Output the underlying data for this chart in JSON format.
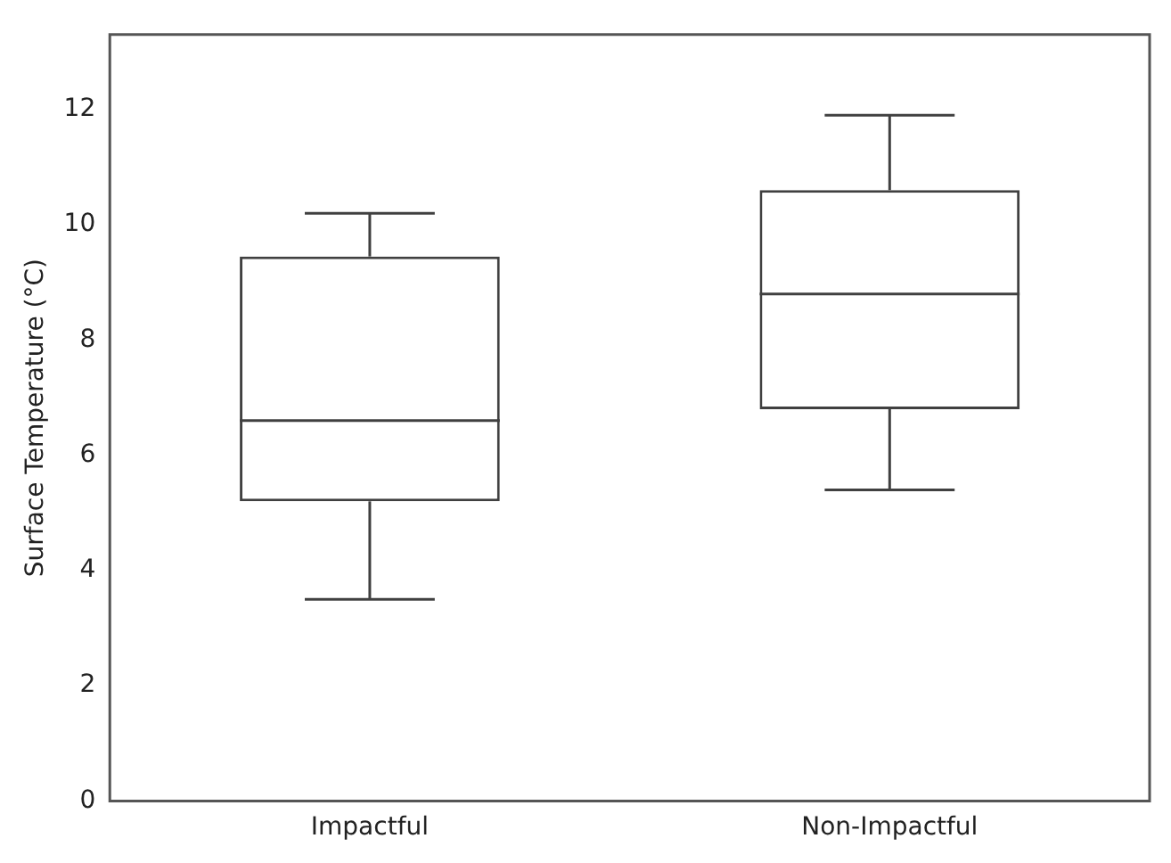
{
  "chart_data": {
    "type": "box",
    "ylabel": "Surface Temperature (°C)",
    "categories": [
      "Impactful",
      "Non-Impactful"
    ],
    "color": "#404040",
    "boxes": [
      {
        "low": 3.5,
        "q1": 5.2,
        "median": 6.6,
        "q3": 9.45,
        "high": 10.2
      },
      {
        "low": 5.4,
        "q1": 6.8,
        "median": 8.8,
        "q3": 10.6,
        "high": 11.9
      }
    ],
    "ylim": [
      0,
      13.3
    ],
    "yticks": [
      0,
      2,
      4,
      6,
      8,
      10,
      12
    ],
    "grid": false,
    "legend": false
  }
}
